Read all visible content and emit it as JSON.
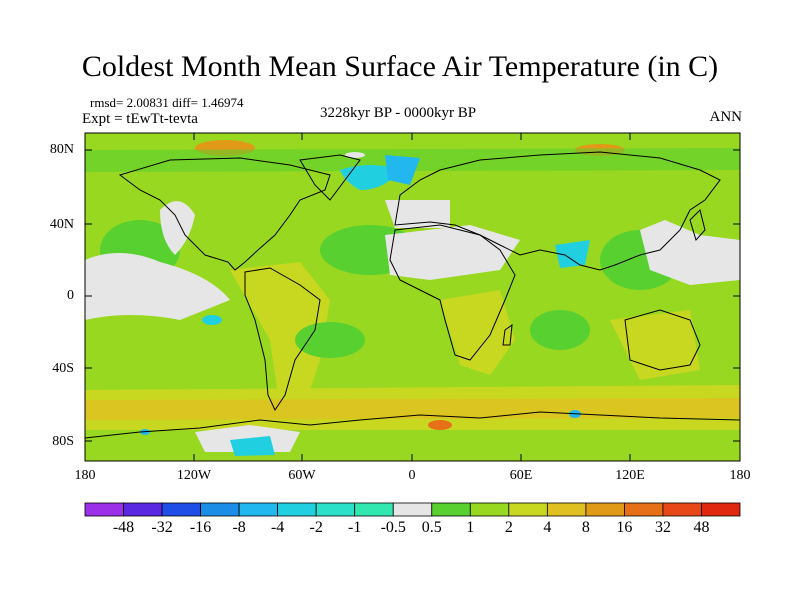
{
  "map": {
    "title": "Coldest Month Mean Surface Air Temperature (in C)",
    "stats_text": "rmsd= 2.00831  diff= 1.46974",
    "experiment_text": "Expt = tEwTt-tevta",
    "period_text": "3228kyr BP - 0000kyr BP",
    "season_text": "ANN",
    "lat_labels": [
      "80N",
      "40N",
      "0",
      "40S",
      "80S"
    ],
    "lon_labels": [
      "180",
      "120W",
      "60W",
      "0",
      "60E",
      "120E",
      "180"
    ]
  },
  "colorbar": {
    "labels": [
      "-48",
      "-32",
      "-16",
      "-8",
      "-4",
      "-2",
      "-1",
      "-0.5",
      "0.5",
      "1",
      "2",
      "4",
      "8",
      "16",
      "32",
      "48"
    ],
    "colors": [
      "#9b30e8",
      "#5a28e0",
      "#1f4ee6",
      "#1a8ee6",
      "#22b7ee",
      "#20d0e0",
      "#2ae0c8",
      "#30e8b0",
      "#e6e6e6",
      "#58d030",
      "#98d820",
      "#c8d820",
      "#e0c020",
      "#e09a18",
      "#e67018",
      "#e84818",
      "#e02810"
    ]
  }
}
